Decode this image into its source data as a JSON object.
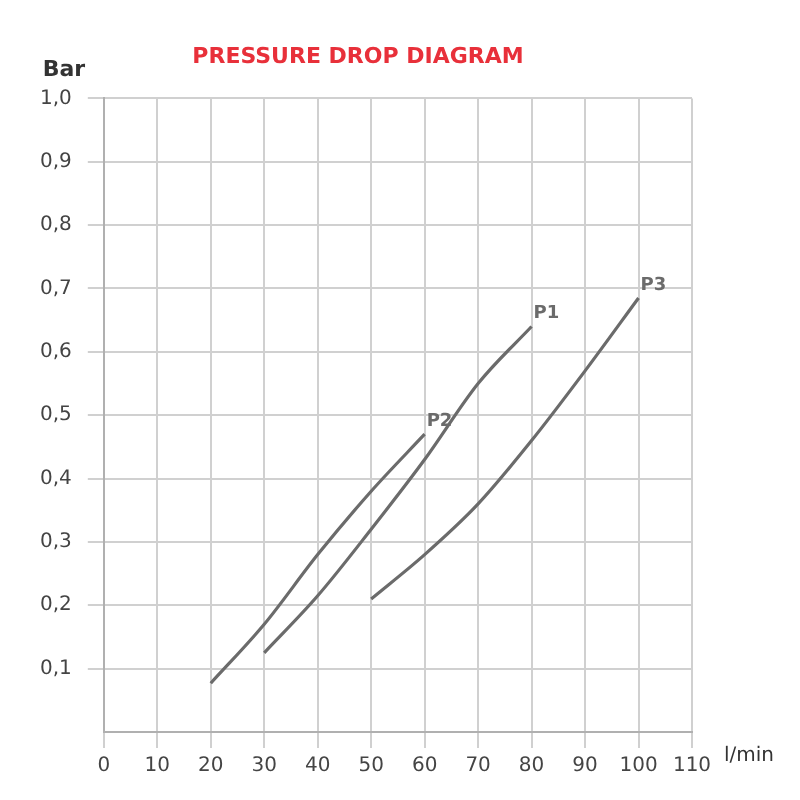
{
  "chart_data": {
    "type": "line",
    "title": "PRESSURE DROP DIAGRAM",
    "xlabel": "l/min",
    "ylabel": "Bar",
    "xlim": [
      0,
      110
    ],
    "ylim": [
      0,
      1.0
    ],
    "xticks": [
      0,
      10,
      20,
      30,
      40,
      50,
      60,
      70,
      80,
      90,
      100,
      110
    ],
    "yticks": [
      {
        "value": 0.1,
        "label": "0,1"
      },
      {
        "value": 0.2,
        "label": "0,2"
      },
      {
        "value": 0.3,
        "label": "0,3"
      },
      {
        "value": 0.4,
        "label": "0,4"
      },
      {
        "value": 0.5,
        "label": "0,5"
      },
      {
        "value": 0.6,
        "label": "0,6"
      },
      {
        "value": 0.7,
        "label": "0,7"
      },
      {
        "value": 0.8,
        "label": "0,8"
      },
      {
        "value": 0.9,
        "label": "0,9"
      },
      {
        "value": 1.0,
        "label": "1,0"
      }
    ],
    "grid": true,
    "legend": false,
    "marker": "none",
    "line_style": "solid",
    "series": [
      {
        "name": "P1",
        "color": "#6b6b6b",
        "x": [
          30,
          40,
          50,
          60,
          70,
          80
        ],
        "values": [
          0.125,
          0.215,
          0.32,
          0.43,
          0.55,
          0.64
        ]
      },
      {
        "name": "P2",
        "color": "#6b6b6b",
        "x": [
          20,
          30,
          40,
          50,
          60
        ],
        "values": [
          0.077,
          0.17,
          0.28,
          0.38,
          0.47
        ]
      },
      {
        "name": "P3",
        "color": "#6b6b6b",
        "x": [
          50,
          60,
          70,
          80,
          90,
          100
        ],
        "values": [
          0.21,
          0.28,
          0.36,
          0.46,
          0.57,
          0.685
        ]
      }
    ]
  }
}
